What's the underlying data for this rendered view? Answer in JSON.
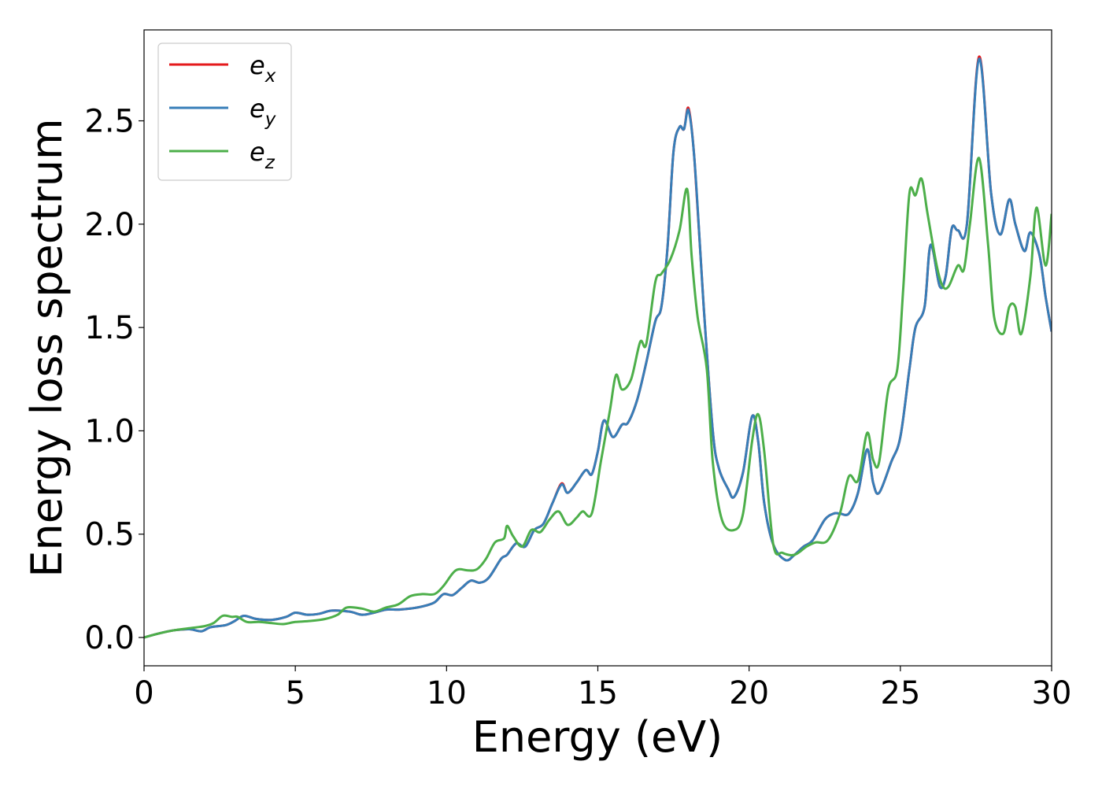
{
  "chart_data": {
    "type": "line",
    "title": "",
    "xlabel": "Energy (eV)",
    "ylabel": "Energy loss spectrum",
    "xlim": [
      0,
      30
    ],
    "ylim": [
      -0.137,
      2.94
    ],
    "xticks": [
      0,
      5,
      10,
      15,
      20,
      25,
      30
    ],
    "xtick_labels": [
      "0",
      "5",
      "10",
      "15",
      "20",
      "25",
      "30"
    ],
    "yticks": [
      0.0,
      0.5,
      1.0,
      1.5,
      2.0,
      2.5
    ],
    "ytick_labels": [
      "0.0",
      "0.5",
      "1.0",
      "1.5",
      "2.0",
      "2.5"
    ],
    "grid": false,
    "legend_position": "top-left",
    "series": [
      {
        "name": "e_x",
        "base": "e",
        "sub": "x",
        "color": "#e41a1c",
        "points": [
          [
            0,
            0
          ],
          [
            0.5,
            0.02
          ],
          [
            1,
            0.035
          ],
          [
            1.5,
            0.04
          ],
          [
            1.9,
            0.03
          ],
          [
            2.2,
            0.05
          ],
          [
            2.7,
            0.06
          ],
          [
            3.0,
            0.08
          ],
          [
            3.3,
            0.105
          ],
          [
            3.7,
            0.09
          ],
          [
            4.2,
            0.085
          ],
          [
            4.7,
            0.1
          ],
          [
            5.0,
            0.12
          ],
          [
            5.4,
            0.11
          ],
          [
            5.8,
            0.115
          ],
          [
            6.2,
            0.13
          ],
          [
            6.8,
            0.125
          ],
          [
            7.2,
            0.11
          ],
          [
            7.6,
            0.12
          ],
          [
            8.0,
            0.135
          ],
          [
            8.4,
            0.135
          ],
          [
            8.8,
            0.14
          ],
          [
            9.2,
            0.15
          ],
          [
            9.6,
            0.17
          ],
          [
            9.9,
            0.21
          ],
          [
            10.2,
            0.205
          ],
          [
            10.5,
            0.24
          ],
          [
            10.8,
            0.275
          ],
          [
            11.1,
            0.265
          ],
          [
            11.4,
            0.29
          ],
          [
            11.8,
            0.38
          ],
          [
            12.0,
            0.4
          ],
          [
            12.3,
            0.455
          ],
          [
            12.6,
            0.44
          ],
          [
            12.9,
            0.52
          ],
          [
            13.2,
            0.55
          ],
          [
            13.5,
            0.65
          ],
          [
            13.8,
            0.745
          ],
          [
            14.0,
            0.7
          ],
          [
            14.3,
            0.75
          ],
          [
            14.6,
            0.81
          ],
          [
            14.8,
            0.79
          ],
          [
            15.0,
            0.9
          ],
          [
            15.2,
            1.05
          ],
          [
            15.5,
            0.97
          ],
          [
            15.8,
            1.03
          ],
          [
            16.0,
            1.04
          ],
          [
            16.3,
            1.15
          ],
          [
            16.6,
            1.33
          ],
          [
            16.9,
            1.53
          ],
          [
            17.1,
            1.6
          ],
          [
            17.3,
            1.88
          ],
          [
            17.5,
            2.35
          ],
          [
            17.7,
            2.47
          ],
          [
            17.85,
            2.46
          ],
          [
            18.0,
            2.56
          ],
          [
            18.2,
            2.3
          ],
          [
            18.5,
            1.6
          ],
          [
            18.8,
            1.0
          ],
          [
            19.0,
            0.82
          ],
          [
            19.3,
            0.72
          ],
          [
            19.5,
            0.68
          ],
          [
            19.8,
            0.8
          ],
          [
            20.1,
            1.07
          ],
          [
            20.3,
            0.95
          ],
          [
            20.5,
            0.65
          ],
          [
            20.8,
            0.45
          ],
          [
            21.2,
            0.375
          ],
          [
            21.5,
            0.4
          ],
          [
            21.8,
            0.44
          ],
          [
            22.1,
            0.47
          ],
          [
            22.5,
            0.57
          ],
          [
            22.8,
            0.6
          ],
          [
            23.0,
            0.6
          ],
          [
            23.3,
            0.6
          ],
          [
            23.6,
            0.7
          ],
          [
            23.9,
            0.91
          ],
          [
            24.1,
            0.75
          ],
          [
            24.3,
            0.7
          ],
          [
            24.7,
            0.85
          ],
          [
            25.0,
            0.97
          ],
          [
            25.3,
            1.3
          ],
          [
            25.5,
            1.5
          ],
          [
            25.8,
            1.6
          ],
          [
            26.0,
            1.9
          ],
          [
            26.3,
            1.7
          ],
          [
            26.5,
            1.75
          ],
          [
            26.7,
            1.98
          ],
          [
            26.9,
            1.97
          ],
          [
            27.2,
            2.0
          ],
          [
            27.6,
            2.81
          ],
          [
            28.0,
            2.15
          ],
          [
            28.3,
            1.95
          ],
          [
            28.6,
            2.12
          ],
          [
            28.8,
            2.0
          ],
          [
            29.1,
            1.87
          ],
          [
            29.3,
            1.96
          ],
          [
            29.6,
            1.85
          ],
          [
            29.8,
            1.65
          ],
          [
            30,
            1.48
          ]
        ]
      },
      {
        "name": "e_y",
        "base": "e",
        "sub": "y",
        "color": "#377eb8",
        "points": [
          [
            0,
            0
          ],
          [
            0.5,
            0.02
          ],
          [
            1,
            0.035
          ],
          [
            1.5,
            0.04
          ],
          [
            1.9,
            0.03
          ],
          [
            2.2,
            0.05
          ],
          [
            2.7,
            0.06
          ],
          [
            3.0,
            0.08
          ],
          [
            3.3,
            0.105
          ],
          [
            3.7,
            0.09
          ],
          [
            4.2,
            0.085
          ],
          [
            4.7,
            0.1
          ],
          [
            5.0,
            0.12
          ],
          [
            5.4,
            0.11
          ],
          [
            5.8,
            0.115
          ],
          [
            6.2,
            0.13
          ],
          [
            6.8,
            0.125
          ],
          [
            7.2,
            0.11
          ],
          [
            7.6,
            0.12
          ],
          [
            8.0,
            0.135
          ],
          [
            8.4,
            0.135
          ],
          [
            8.8,
            0.14
          ],
          [
            9.2,
            0.15
          ],
          [
            9.6,
            0.17
          ],
          [
            9.9,
            0.21
          ],
          [
            10.2,
            0.205
          ],
          [
            10.5,
            0.24
          ],
          [
            10.8,
            0.275
          ],
          [
            11.1,
            0.265
          ],
          [
            11.4,
            0.29
          ],
          [
            11.8,
            0.38
          ],
          [
            12.0,
            0.4
          ],
          [
            12.3,
            0.455
          ],
          [
            12.6,
            0.44
          ],
          [
            12.9,
            0.52
          ],
          [
            13.2,
            0.55
          ],
          [
            13.5,
            0.65
          ],
          [
            13.8,
            0.74
          ],
          [
            14.0,
            0.7
          ],
          [
            14.3,
            0.75
          ],
          [
            14.6,
            0.81
          ],
          [
            14.8,
            0.79
          ],
          [
            15.0,
            0.9
          ],
          [
            15.2,
            1.05
          ],
          [
            15.5,
            0.97
          ],
          [
            15.8,
            1.03
          ],
          [
            16.0,
            1.04
          ],
          [
            16.3,
            1.15
          ],
          [
            16.6,
            1.33
          ],
          [
            16.9,
            1.53
          ],
          [
            17.1,
            1.6
          ],
          [
            17.3,
            1.88
          ],
          [
            17.5,
            2.35
          ],
          [
            17.7,
            2.47
          ],
          [
            17.85,
            2.46
          ],
          [
            18.0,
            2.55
          ],
          [
            18.2,
            2.3
          ],
          [
            18.5,
            1.6
          ],
          [
            18.8,
            1.0
          ],
          [
            19.0,
            0.82
          ],
          [
            19.3,
            0.72
          ],
          [
            19.5,
            0.68
          ],
          [
            19.8,
            0.8
          ],
          [
            20.1,
            1.07
          ],
          [
            20.3,
            0.95
          ],
          [
            20.5,
            0.65
          ],
          [
            20.8,
            0.45
          ],
          [
            21.2,
            0.375
          ],
          [
            21.5,
            0.4
          ],
          [
            21.8,
            0.44
          ],
          [
            22.1,
            0.47
          ],
          [
            22.5,
            0.57
          ],
          [
            22.8,
            0.6
          ],
          [
            23.0,
            0.6
          ],
          [
            23.3,
            0.6
          ],
          [
            23.6,
            0.7
          ],
          [
            23.9,
            0.91
          ],
          [
            24.1,
            0.75
          ],
          [
            24.3,
            0.7
          ],
          [
            24.7,
            0.85
          ],
          [
            25.0,
            0.97
          ],
          [
            25.3,
            1.3
          ],
          [
            25.5,
            1.5
          ],
          [
            25.8,
            1.6
          ],
          [
            26.0,
            1.9
          ],
          [
            26.3,
            1.7
          ],
          [
            26.5,
            1.75
          ],
          [
            26.7,
            1.98
          ],
          [
            26.9,
            1.97
          ],
          [
            27.2,
            2.0
          ],
          [
            27.6,
            2.8
          ],
          [
            28.0,
            2.15
          ],
          [
            28.3,
            1.95
          ],
          [
            28.6,
            2.12
          ],
          [
            28.8,
            2.0
          ],
          [
            29.1,
            1.87
          ],
          [
            29.3,
            1.96
          ],
          [
            29.6,
            1.85
          ],
          [
            29.8,
            1.65
          ],
          [
            30,
            1.48
          ]
        ]
      },
      {
        "name": "e_z",
        "base": "e",
        "sub": "z",
        "color": "#4daf4a",
        "points": [
          [
            0,
            0
          ],
          [
            0.5,
            0.02
          ],
          [
            1,
            0.035
          ],
          [
            1.5,
            0.045
          ],
          [
            2.0,
            0.055
          ],
          [
            2.3,
            0.07
          ],
          [
            2.6,
            0.105
          ],
          [
            2.9,
            0.1
          ],
          [
            3.1,
            0.1
          ],
          [
            3.4,
            0.075
          ],
          [
            3.8,
            0.075
          ],
          [
            4.2,
            0.07
          ],
          [
            4.6,
            0.065
          ],
          [
            5.0,
            0.075
          ],
          [
            5.5,
            0.08
          ],
          [
            6.0,
            0.09
          ],
          [
            6.4,
            0.11
          ],
          [
            6.7,
            0.145
          ],
          [
            7.2,
            0.14
          ],
          [
            7.6,
            0.125
          ],
          [
            8.0,
            0.145
          ],
          [
            8.4,
            0.16
          ],
          [
            8.8,
            0.2
          ],
          [
            9.2,
            0.21
          ],
          [
            9.6,
            0.21
          ],
          [
            9.9,
            0.25
          ],
          [
            10.2,
            0.31
          ],
          [
            10.4,
            0.33
          ],
          [
            10.7,
            0.325
          ],
          [
            11.0,
            0.33
          ],
          [
            11.3,
            0.38
          ],
          [
            11.6,
            0.46
          ],
          [
            11.9,
            0.48
          ],
          [
            12.0,
            0.54
          ],
          [
            12.2,
            0.49
          ],
          [
            12.5,
            0.44
          ],
          [
            12.8,
            0.52
          ],
          [
            13.1,
            0.51
          ],
          [
            13.4,
            0.57
          ],
          [
            13.7,
            0.61
          ],
          [
            14.0,
            0.545
          ],
          [
            14.3,
            0.58
          ],
          [
            14.5,
            0.61
          ],
          [
            14.8,
            0.6
          ],
          [
            15.1,
            0.85
          ],
          [
            15.4,
            1.1
          ],
          [
            15.6,
            1.27
          ],
          [
            15.8,
            1.2
          ],
          [
            16.1,
            1.25
          ],
          [
            16.4,
            1.43
          ],
          [
            16.6,
            1.42
          ],
          [
            16.9,
            1.72
          ],
          [
            17.1,
            1.76
          ],
          [
            17.4,
            1.83
          ],
          [
            17.7,
            1.97
          ],
          [
            17.95,
            2.17
          ],
          [
            18.1,
            1.85
          ],
          [
            18.3,
            1.55
          ],
          [
            18.6,
            1.3
          ],
          [
            18.8,
            0.85
          ],
          [
            19.1,
            0.57
          ],
          [
            19.5,
            0.52
          ],
          [
            19.8,
            0.6
          ],
          [
            20.1,
            0.95
          ],
          [
            20.3,
            1.08
          ],
          [
            20.5,
            0.9
          ],
          [
            20.8,
            0.45
          ],
          [
            21.1,
            0.41
          ],
          [
            21.5,
            0.4
          ],
          [
            21.9,
            0.44
          ],
          [
            22.2,
            0.46
          ],
          [
            22.6,
            0.47
          ],
          [
            23.0,
            0.6
          ],
          [
            23.3,
            0.78
          ],
          [
            23.6,
            0.76
          ],
          [
            23.9,
            0.99
          ],
          [
            24.1,
            0.86
          ],
          [
            24.3,
            0.85
          ],
          [
            24.6,
            1.2
          ],
          [
            24.9,
            1.3
          ],
          [
            25.1,
            1.7
          ],
          [
            25.3,
            2.15
          ],
          [
            25.5,
            2.14
          ],
          [
            25.7,
            2.22
          ],
          [
            25.9,
            2.05
          ],
          [
            26.2,
            1.8
          ],
          [
            26.4,
            1.7
          ],
          [
            26.6,
            1.7
          ],
          [
            26.9,
            1.8
          ],
          [
            27.1,
            1.78
          ],
          [
            27.3,
            2.0
          ],
          [
            27.6,
            2.32
          ],
          [
            27.9,
            1.9
          ],
          [
            28.1,
            1.55
          ],
          [
            28.4,
            1.47
          ],
          [
            28.6,
            1.6
          ],
          [
            28.8,
            1.6
          ],
          [
            29.0,
            1.47
          ],
          [
            29.3,
            1.75
          ],
          [
            29.5,
            2.08
          ],
          [
            29.8,
            1.8
          ],
          [
            30,
            2.05
          ]
        ]
      }
    ]
  }
}
